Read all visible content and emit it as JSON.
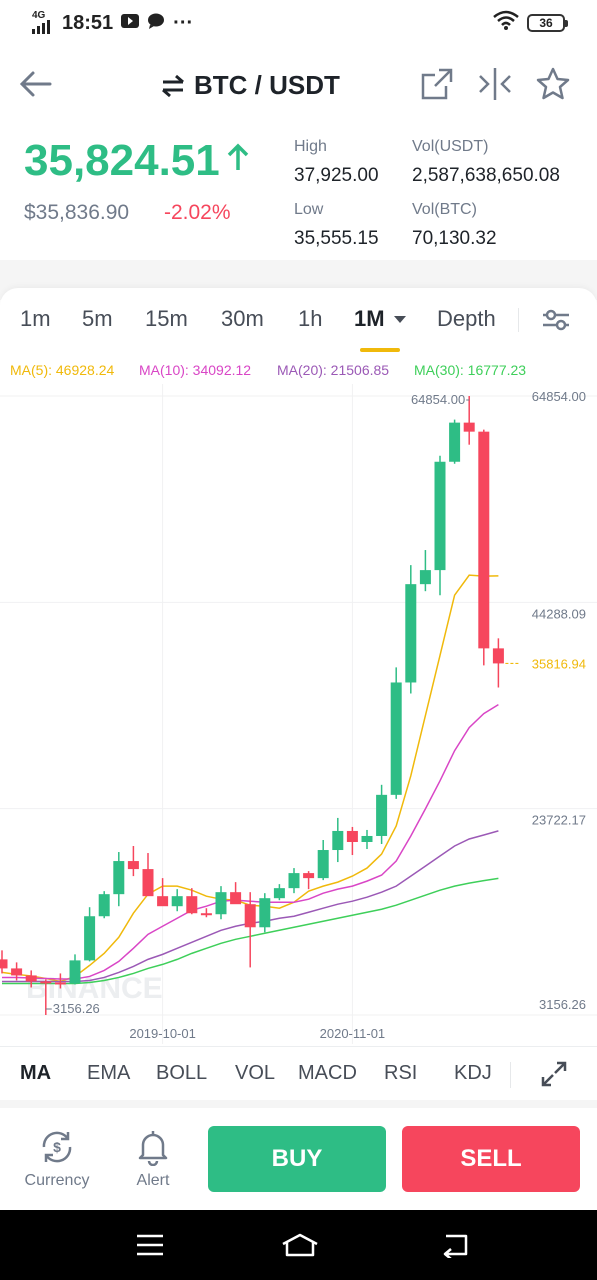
{
  "status_bar": {
    "network": "4G",
    "time": "18:51",
    "battery": "36"
  },
  "header": {
    "pair": "BTC / USDT"
  },
  "price": {
    "last": "35,824.51",
    "fiat": "$35,836.90",
    "change": "-2.02%",
    "high_label": "High",
    "high": "37,925.00",
    "low_label": "Low",
    "low": "35,555.15",
    "vol_usdt_label": "Vol(USDT)",
    "vol_usdt": "2,587,638,650.08",
    "vol_btc_label": "Vol(BTC)",
    "vol_btc": "70,130.32"
  },
  "intervals": [
    "1m",
    "5m",
    "15m",
    "30m",
    "1h",
    "1M",
    "Depth"
  ],
  "active_interval": "1M",
  "ma_legend": {
    "ma5": "MA(5): 46928.24",
    "ma10": "MA(10): 34092.12",
    "ma20": "MA(20): 21506.85",
    "ma30": "MA(30): 16777.23"
  },
  "colors": {
    "up": "#2ebd85",
    "down": "#f6465d",
    "accent": "#f0b90b",
    "ma5": "#f0b90b",
    "ma10": "#d946c6",
    "ma20": "#9b59b6",
    "ma30": "#3ecf5a"
  },
  "chart_data": {
    "type": "candlestick",
    "interval": "1M",
    "y_axis_labels": [
      "64854.00",
      "44288.09",
      "23722.17",
      "3156.26"
    ],
    "ylim": [
      3156.26,
      64854.0
    ],
    "x_axis_labels": [
      "2019-10-01",
      "2020-11-01"
    ],
    "high_label": "64854.00",
    "low_label": "3156.26",
    "last_price_label": "35816.94",
    "watermark": "BINANCE",
    "candles": [
      {
        "o": 8700,
        "h": 9600,
        "l": 7300,
        "c": 7800
      },
      {
        "o": 7800,
        "h": 8400,
        "l": 6600,
        "c": 7100
      },
      {
        "o": 7100,
        "h": 7600,
        "l": 5900,
        "c": 6500
      },
      {
        "o": 6500,
        "h": 6700,
        "l": 3156.26,
        "c": 6400
      },
      {
        "o": 6400,
        "h": 7300,
        "l": 5800,
        "c": 6300
      },
      {
        "o": 6300,
        "h": 9200,
        "l": 6200,
        "c": 8600
      },
      {
        "o": 8600,
        "h": 13900,
        "l": 8500,
        "c": 13000
      },
      {
        "o": 13000,
        "h": 15500,
        "l": 12800,
        "c": 15200
      },
      {
        "o": 15200,
        "h": 19400,
        "l": 14000,
        "c": 18500
      },
      {
        "o": 18500,
        "h": 20000,
        "l": 17000,
        "c": 17700
      },
      {
        "o": 17700,
        "h": 19300,
        "l": 15500,
        "c": 15000
      },
      {
        "o": 15000,
        "h": 16800,
        "l": 14300,
        "c": 14000
      },
      {
        "o": 14000,
        "h": 15700,
        "l": 13500,
        "c": 15000
      },
      {
        "o": 15000,
        "h": 15800,
        "l": 13200,
        "c": 13300
      },
      {
        "o": 13300,
        "h": 13800,
        "l": 12900,
        "c": 13200
      },
      {
        "o": 13200,
        "h": 16000,
        "l": 12700,
        "c": 15400
      },
      {
        "o": 15400,
        "h": 16400,
        "l": 14400,
        "c": 14200
      },
      {
        "o": 14200,
        "h": 15400,
        "l": 7900,
        "c": 11900
      },
      {
        "o": 11900,
        "h": 15300,
        "l": 11400,
        "c": 14800
      },
      {
        "o": 14800,
        "h": 16200,
        "l": 14600,
        "c": 15800
      },
      {
        "o": 15800,
        "h": 17800,
        "l": 15300,
        "c": 17300
      },
      {
        "o": 17300,
        "h": 17500,
        "l": 15700,
        "c": 16800
      },
      {
        "o": 16800,
        "h": 20600,
        "l": 16600,
        "c": 19600
      },
      {
        "o": 19600,
        "h": 22800,
        "l": 18400,
        "c": 21500
      },
      {
        "o": 21500,
        "h": 21900,
        "l": 19100,
        "c": 20400
      },
      {
        "o": 20400,
        "h": 21600,
        "l": 19700,
        "c": 21000
      },
      {
        "o": 21000,
        "h": 26100,
        "l": 20200,
        "c": 25100
      },
      {
        "o": 25100,
        "h": 37800,
        "l": 24700,
        "c": 36300
      },
      {
        "o": 36300,
        "h": 48000,
        "l": 35200,
        "c": 46100
      },
      {
        "o": 46100,
        "h": 49500,
        "l": 45400,
        "c": 47500
      },
      {
        "o": 47500,
        "h": 58900,
        "l": 45000,
        "c": 58300
      },
      {
        "o": 58300,
        "h": 62500,
        "l": 58100,
        "c": 62200
      },
      {
        "o": 62200,
        "h": 64854,
        "l": 60000,
        "c": 61300
      },
      {
        "o": 61300,
        "h": 61500,
        "l": 38000,
        "c": 39700
      },
      {
        "o": 39700,
        "h": 40700,
        "l": 35800,
        "c": 38200
      }
    ],
    "series": [
      {
        "name": "MA(5)",
        "values": [
          7400,
          7200,
          7050,
          6800,
          6500,
          7000,
          8100,
          9300,
          10900,
          13300,
          15200,
          16000,
          16000,
          15600,
          15000,
          14700,
          14600,
          14100,
          14000,
          13800,
          14400,
          15500,
          16000,
          16400,
          17000,
          17800,
          19200,
          22000,
          27000,
          33000,
          39000,
          45000,
          47000,
          46900,
          46928.24
        ]
      },
      {
        "name": "MA(10)",
        "values": [
          6900,
          6900,
          6850,
          6800,
          6750,
          6750,
          7000,
          7600,
          8500,
          9800,
          11200,
          12000,
          12800,
          13600,
          14000,
          14500,
          14600,
          14500,
          14400,
          14400,
          14400,
          14700,
          15300,
          15700,
          16000,
          16500,
          17100,
          18500,
          21000,
          23700,
          26500,
          29500,
          31800,
          33200,
          34092.12
        ]
      },
      {
        "name": "MA(20)",
        "values": [
          6500,
          6500,
          6500,
          6500,
          6500,
          6500,
          6600,
          6900,
          7400,
          8000,
          8700,
          9200,
          9800,
          10400,
          11000,
          11600,
          12000,
          12300,
          12500,
          12800,
          13000,
          13400,
          13800,
          14200,
          14500,
          14900,
          15400,
          16000,
          17000,
          18000,
          19000,
          20000,
          20700,
          21100,
          21506.85
        ]
      },
      {
        "name": "MA(30)",
        "values": [
          6300,
          6300,
          6300,
          6300,
          6300,
          6300,
          6400,
          6600,
          6900,
          7300,
          7800,
          8200,
          8700,
          9300,
          9800,
          10300,
          10700,
          11000,
          11300,
          11600,
          11900,
          12200,
          12500,
          12800,
          13100,
          13400,
          13700,
          14100,
          14600,
          15100,
          15600,
          16000,
          16300,
          16550,
          16777.23
        ]
      }
    ]
  },
  "indicators": [
    "MA",
    "EMA",
    "BOLL",
    "VOL",
    "MACD",
    "RSI",
    "KDJ"
  ],
  "active_indicator": "MA",
  "actions": {
    "currency_label": "Currency",
    "alert_label": "Alert",
    "buy_label": "BUY",
    "sell_label": "SELL"
  }
}
